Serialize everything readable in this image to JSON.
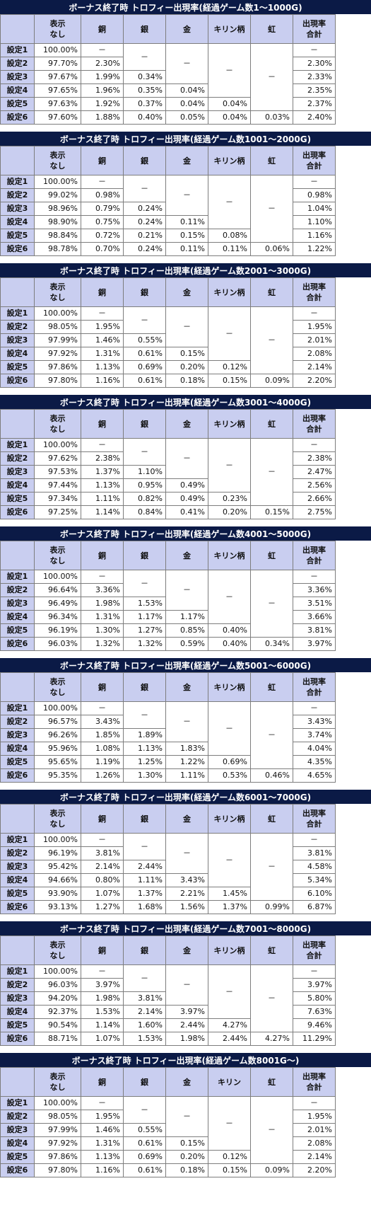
{
  "columns": {
    "none": "表示\nなし",
    "copper": "銅",
    "silver": "銀",
    "gold": "金",
    "kirin": "キリン柄",
    "rainbow": "虹",
    "total": "出現率\n合計"
  },
  "dash": "－",
  "settings": [
    "設定1",
    "設定2",
    "設定3",
    "設定4",
    "設定5",
    "設定6"
  ],
  "tables": [
    {
      "title": "ボーナス終了時 トロフィー出現率(経過ゲーム数1～1000G)",
      "kirin_label": "キリン柄",
      "none": [
        "100.00%",
        "97.70%",
        "97.67%",
        "97.65%",
        "97.63%",
        "97.60%"
      ],
      "copper": [
        "2.30%",
        "1.99%",
        "1.96%",
        "1.92%",
        "1.88%"
      ],
      "silver": [
        "0.34%",
        "0.35%",
        "0.37%",
        "0.40%"
      ],
      "gold": [
        "0.04%",
        "0.04%",
        "0.05%"
      ],
      "kirin": [
        "0.04%",
        "0.04%"
      ],
      "rainbow": [
        "0.03%"
      ],
      "total": [
        "2.30%",
        "2.33%",
        "2.35%",
        "2.37%",
        "2.40%"
      ]
    },
    {
      "title": "ボーナス終了時 トロフィー出現率(経過ゲーム数1001～2000G)",
      "kirin_label": "キリン柄",
      "none": [
        "100.00%",
        "99.02%",
        "98.96%",
        "98.90%",
        "98.84%",
        "98.78%"
      ],
      "copper": [
        "0.98%",
        "0.79%",
        "0.75%",
        "0.72%",
        "0.70%"
      ],
      "silver": [
        "0.24%",
        "0.24%",
        "0.21%",
        "0.24%"
      ],
      "gold": [
        "0.11%",
        "0.15%",
        "0.11%"
      ],
      "kirin": [
        "0.08%",
        "0.11%"
      ],
      "rainbow": [
        "0.06%"
      ],
      "total": [
        "0.98%",
        "1.04%",
        "1.10%",
        "1.16%",
        "1.22%"
      ]
    },
    {
      "title": "ボーナス終了時 トロフィー出現率(経過ゲーム数2001～3000G)",
      "kirin_label": "キリン柄",
      "none": [
        "100.00%",
        "98.05%",
        "97.99%",
        "97.92%",
        "97.86%",
        "97.80%"
      ],
      "copper": [
        "1.95%",
        "1.46%",
        "1.31%",
        "1.13%",
        "1.16%"
      ],
      "silver": [
        "0.55%",
        "0.61%",
        "0.69%",
        "0.61%"
      ],
      "gold": [
        "0.15%",
        "0.20%",
        "0.18%"
      ],
      "kirin": [
        "0.12%",
        "0.15%"
      ],
      "rainbow": [
        "0.09%"
      ],
      "total": [
        "1.95%",
        "2.01%",
        "2.08%",
        "2.14%",
        "2.20%"
      ]
    },
    {
      "title": "ボーナス終了時 トロフィー出現率(経過ゲーム数3001～4000G)",
      "kirin_label": "キリン柄",
      "none": [
        "100.00%",
        "97.62%",
        "97.53%",
        "97.44%",
        "97.34%",
        "97.25%"
      ],
      "copper": [
        "2.38%",
        "1.37%",
        "1.13%",
        "1.11%",
        "1.14%"
      ],
      "silver": [
        "1.10%",
        "0.95%",
        "0.82%",
        "0.84%"
      ],
      "gold": [
        "0.49%",
        "0.49%",
        "0.41%"
      ],
      "kirin": [
        "0.23%",
        "0.20%"
      ],
      "rainbow": [
        "0.15%"
      ],
      "total": [
        "2.38%",
        "2.47%",
        "2.56%",
        "2.66%",
        "2.75%"
      ]
    },
    {
      "title": "ボーナス終了時 トロフィー出現率(経過ゲーム数4001～5000G)",
      "kirin_label": "キリン柄",
      "none": [
        "100.00%",
        "96.64%",
        "96.49%",
        "96.34%",
        "96.19%",
        "96.03%"
      ],
      "copper": [
        "3.36%",
        "1.98%",
        "1.31%",
        "1.30%",
        "1.32%"
      ],
      "silver": [
        "1.53%",
        "1.17%",
        "1.27%",
        "1.32%"
      ],
      "gold": [
        "1.17%",
        "0.85%",
        "0.59%"
      ],
      "kirin": [
        "0.40%",
        "0.40%"
      ],
      "rainbow": [
        "0.34%"
      ],
      "total": [
        "3.36%",
        "3.51%",
        "3.66%",
        "3.81%",
        "3.97%"
      ]
    },
    {
      "title": "ボーナス終了時 トロフィー出現率(経過ゲーム数5001～6000G)",
      "kirin_label": "キリン柄",
      "none": [
        "100.00%",
        "96.57%",
        "96.26%",
        "95.96%",
        "95.65%",
        "95.35%"
      ],
      "copper": [
        "3.43%",
        "1.85%",
        "1.08%",
        "1.19%",
        "1.26%"
      ],
      "silver": [
        "1.89%",
        "1.13%",
        "1.25%",
        "1.30%"
      ],
      "gold": [
        "1.83%",
        "1.22%",
        "1.11%"
      ],
      "kirin": [
        "0.69%",
        "0.53%"
      ],
      "rainbow": [
        "0.46%"
      ],
      "total": [
        "3.43%",
        "3.74%",
        "4.04%",
        "4.35%",
        "4.65%"
      ]
    },
    {
      "title": "ボーナス終了時 トロフィー出現率(経過ゲーム数6001～7000G)",
      "kirin_label": "キリン柄",
      "none": [
        "100.00%",
        "96.19%",
        "95.42%",
        "94.66%",
        "93.90%",
        "93.13%"
      ],
      "copper": [
        "3.81%",
        "2.14%",
        "0.80%",
        "1.07%",
        "1.27%"
      ],
      "silver": [
        "2.44%",
        "1.11%",
        "1.37%",
        "1.68%"
      ],
      "gold": [
        "3.43%",
        "2.21%",
        "1.56%"
      ],
      "kirin": [
        "1.45%",
        "1.37%"
      ],
      "rainbow": [
        "0.99%"
      ],
      "total": [
        "3.81%",
        "4.58%",
        "5.34%",
        "6.10%",
        "6.87%"
      ]
    },
    {
      "title": "ボーナス終了時 トロフィー出現率(経過ゲーム数7001～8000G)",
      "kirin_label": "キリン柄",
      "none": [
        "100.00%",
        "96.03%",
        "94.20%",
        "92.37%",
        "90.54%",
        "88.71%"
      ],
      "copper": [
        "3.97%",
        "1.98%",
        "1.53%",
        "1.14%",
        "1.07%"
      ],
      "silver": [
        "3.81%",
        "2.14%",
        "1.60%",
        "1.53%"
      ],
      "gold": [
        "3.97%",
        "2.44%",
        "1.98%"
      ],
      "kirin": [
        "4.27%",
        "2.44%"
      ],
      "rainbow": [
        "4.27%"
      ],
      "total": [
        "3.97%",
        "5.80%",
        "7.63%",
        "9.46%",
        "11.29%"
      ]
    },
    {
      "title": "ボーナス終了時 トロフィー出現率(経過ゲーム数8001G～)",
      "kirin_label": "キリン",
      "none": [
        "100.00%",
        "98.05%",
        "97.99%",
        "97.92%",
        "97.86%",
        "97.80%"
      ],
      "copper": [
        "1.95%",
        "1.46%",
        "1.31%",
        "1.13%",
        "1.16%"
      ],
      "silver": [
        "0.55%",
        "0.61%",
        "0.69%",
        "0.61%"
      ],
      "gold": [
        "0.15%",
        "0.20%",
        "0.18%"
      ],
      "kirin": [
        "0.12%",
        "0.15%"
      ],
      "rainbow": [
        "0.09%"
      ],
      "total": [
        "1.95%",
        "2.01%",
        "2.08%",
        "2.14%",
        "2.20%"
      ]
    }
  ]
}
